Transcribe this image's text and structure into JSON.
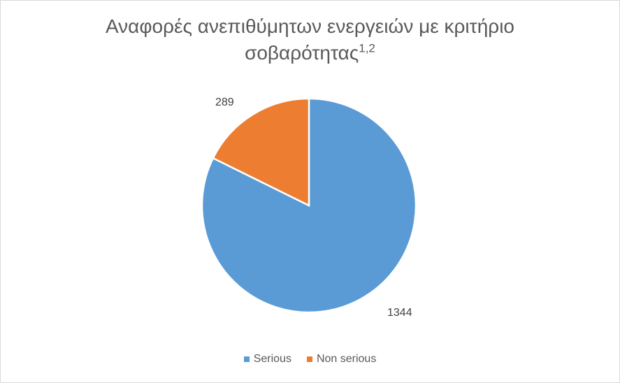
{
  "chart_data": {
    "type": "pie",
    "title_line1": "Αναφορές ανεπιθύμητων ενεργειών με κριτήριο",
    "title_line2": "σοβαρότητας",
    "title_superscript": "1,2",
    "categories": [
      "Serious",
      "Non serious"
    ],
    "values": [
      1344,
      289
    ],
    "data_labels": [
      "1344",
      "289"
    ],
    "colors": [
      "#5b9bd5",
      "#ed7d31"
    ],
    "slice_border_color": "#ffffff",
    "legend_position": "bottom"
  }
}
